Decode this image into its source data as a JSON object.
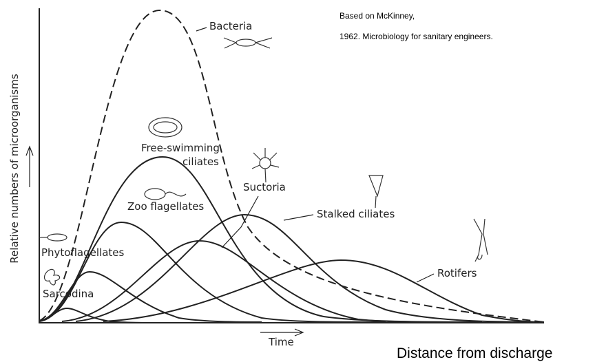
{
  "credit": {
    "line1": "Based on McKinney,",
    "line2": "1962. Microbiology for sanitary engineers."
  },
  "axes": {
    "y_label": "Relative numbers of microorganisms",
    "x_label": "Time",
    "x_caption": "Distance from discharge"
  },
  "curves": [
    {
      "label_lines": [
        "Bacteria"
      ]
    },
    {
      "label_lines": [
        "Free-swimming",
        "ciliates"
      ]
    },
    {
      "label_lines": [
        "Suctoria"
      ]
    },
    {
      "label_lines": [
        "Zoo flagellates"
      ]
    },
    {
      "label_lines": [
        "Stalked ciliates"
      ]
    },
    {
      "label_lines": [
        "Phytoflagellates"
      ]
    },
    {
      "label_lines": [
        "Sarcodina"
      ]
    },
    {
      "label_lines": [
        "Rotifers"
      ]
    }
  ]
}
